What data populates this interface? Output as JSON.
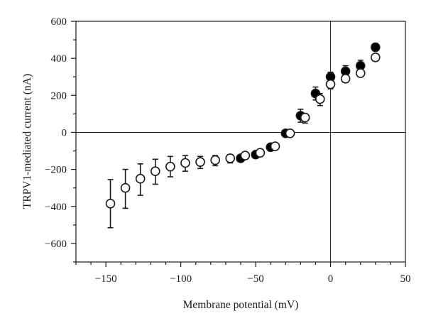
{
  "chart_data": {
    "type": "scatter",
    "xlabel": "Membrane potential (mV)",
    "ylabel": "TRPV1-mediated current (nA)",
    "xlim": [
      -170,
      50
    ],
    "ylim": [
      -700,
      600
    ],
    "x_ticks": [
      -150,
      -100,
      -50,
      0,
      50
    ],
    "x_tick_labels": [
      "−150",
      "−100",
      "−50",
      "0",
      "50"
    ],
    "y_ticks": [
      -600,
      -400,
      -200,
      0,
      200,
      400,
      600
    ],
    "y_tick_labels": [
      "−600",
      "−400",
      "−200",
      "0",
      "200",
      "400",
      "600"
    ],
    "x_minor_step": 10,
    "y_minor_step": 100,
    "zero_lines": true,
    "grid": false,
    "colors": {
      "filled": "#000000",
      "open": "#ffffff",
      "axis": "#1a1a1a"
    },
    "series": [
      {
        "marker": "filled-circle",
        "x": [
          -60,
          -50,
          -40,
          -30,
          -20,
          -10,
          0,
          10,
          20,
          30
        ],
        "y": [
          -140,
          -120,
          -80,
          -5,
          90,
          210,
          300,
          330,
          360,
          460
        ],
        "err_lo": [
          12,
          12,
          12,
          15,
          35,
          35,
          25,
          30,
          30,
          20
        ],
        "err_hi": [
          12,
          12,
          12,
          15,
          35,
          35,
          25,
          30,
          30,
          20
        ]
      },
      {
        "marker": "open-circle",
        "x": [
          -147,
          -137,
          -127,
          -117,
          -107,
          -97,
          -87,
          -77,
          -67,
          -57,
          -47,
          -37,
          -27,
          -17,
          -7,
          0,
          10,
          20,
          30
        ],
        "y": [
          -385,
          -300,
          -250,
          -210,
          -185,
          -165,
          -160,
          -150,
          -140,
          -125,
          -110,
          -75,
          -5,
          80,
          180,
          260,
          290,
          320,
          405
        ],
        "err_lo": [
          130,
          110,
          90,
          70,
          55,
          45,
          35,
          30,
          25,
          20,
          20,
          15,
          15,
          30,
          35,
          25,
          20,
          20,
          15
        ],
        "err_hi": [
          130,
          100,
          80,
          65,
          55,
          40,
          30,
          25,
          20,
          15,
          15,
          15,
          15,
          20,
          30,
          20,
          20,
          20,
          15
        ]
      }
    ]
  }
}
